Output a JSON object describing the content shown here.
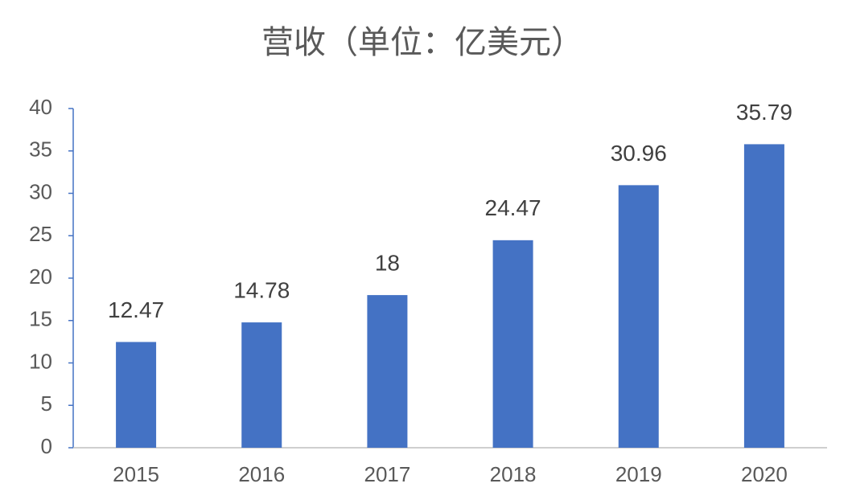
{
  "chart_data": {
    "type": "bar",
    "title": "营收（单位：亿美元）",
    "categories": [
      "2015",
      "2016",
      "2017",
      "2018",
      "2019",
      "2020"
    ],
    "values": [
      12.47,
      14.78,
      18,
      24.47,
      30.96,
      35.79
    ],
    "color": "#4472c4",
    "ylim": [
      0,
      40
    ],
    "yticks": [
      0,
      5,
      10,
      15,
      20,
      25,
      30,
      35,
      40
    ],
    "grid": false
  }
}
